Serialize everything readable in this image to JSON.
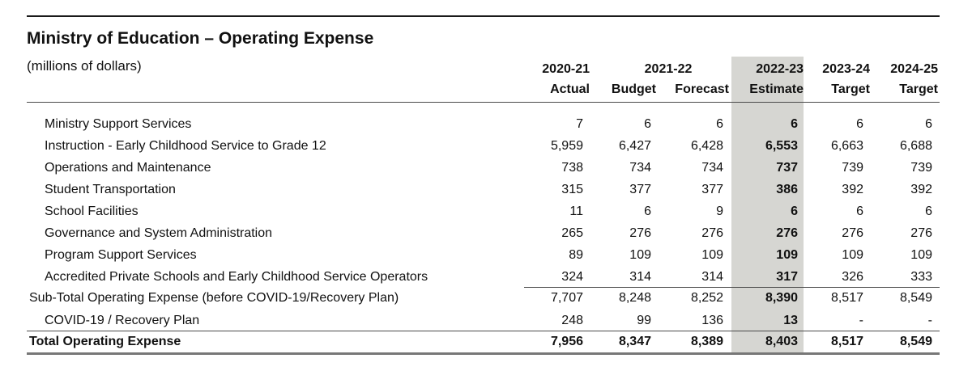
{
  "table": {
    "title": "Ministry of Education – Operating Expense",
    "unit_label": "(millions of dollars)",
    "header": {
      "year_2020_21": "2020-21",
      "year_2021_22": "2021-22",
      "year_2022_23": "2022-23",
      "year_2023_24": "2023-24",
      "year_2024_25": "2024-25",
      "col_actual": "Actual",
      "col_budget": "Budget",
      "col_forecast": "Forecast",
      "col_estimate": "Estimate",
      "col_target_1": "Target",
      "col_target_2": "Target"
    },
    "rows": [
      {
        "label": "Ministry Support Services",
        "actual": "7",
        "budget": "6",
        "forecast": "6",
        "estimate": "6",
        "target_2023_24": "6",
        "target_2024_25": "6"
      },
      {
        "label": "Instruction - Early Childhood Service to Grade 12",
        "actual": "5,959",
        "budget": "6,427",
        "forecast": "6,428",
        "estimate": "6,553",
        "target_2023_24": "6,663",
        "target_2024_25": "6,688"
      },
      {
        "label": "Operations and Maintenance",
        "actual": "738",
        "budget": "734",
        "forecast": "734",
        "estimate": "737",
        "target_2023_24": "739",
        "target_2024_25": "739"
      },
      {
        "label": "Student Transportation",
        "actual": "315",
        "budget": "377",
        "forecast": "377",
        "estimate": "386",
        "target_2023_24": "392",
        "target_2024_25": "392"
      },
      {
        "label": "School Facilities",
        "actual": "11",
        "budget": "6",
        "forecast": "9",
        "estimate": "6",
        "target_2023_24": "6",
        "target_2024_25": "6"
      },
      {
        "label": "Governance and System Administration",
        "actual": "265",
        "budget": "276",
        "forecast": "276",
        "estimate": "276",
        "target_2023_24": "276",
        "target_2024_25": "276"
      },
      {
        "label": "Program Support Services",
        "actual": "89",
        "budget": "109",
        "forecast": "109",
        "estimate": "109",
        "target_2023_24": "109",
        "target_2024_25": "109"
      },
      {
        "label": "Accredited Private Schools and Early Childhood Service Operators",
        "actual": "324",
        "budget": "314",
        "forecast": "314",
        "estimate": "317",
        "target_2023_24": "326",
        "target_2024_25": "333"
      }
    ],
    "subtotal": {
      "label": "Sub-Total Operating Expense (before COVID-19/Recovery Plan)",
      "actual": "7,707",
      "budget": "8,248",
      "forecast": "8,252",
      "estimate": "8,390",
      "target_2023_24": "8,517",
      "target_2024_25": "8,549"
    },
    "covid": {
      "label": "COVID-19 / Recovery Plan",
      "actual": "248",
      "budget": "99",
      "forecast": "136",
      "estimate": "13",
      "target_2023_24": "-",
      "target_2024_25": "-"
    },
    "total": {
      "label": "Total Operating Expense",
      "actual": "7,956",
      "budget": "8,347",
      "forecast": "8,389",
      "estimate": "8,403",
      "target_2023_24": "8,517",
      "target_2024_25": "8,549"
    }
  }
}
